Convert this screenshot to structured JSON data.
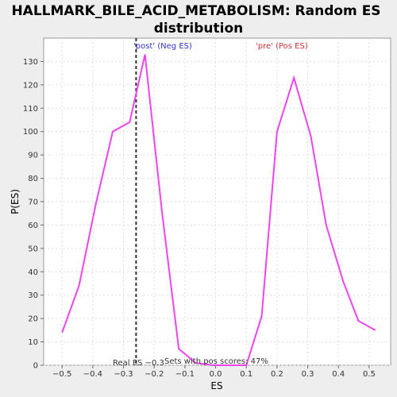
{
  "chart_data": {
    "type": "line",
    "title": "HALLMARK_BILE_ACID_METABOLISM: Random ES distribution",
    "title_lines": [
      "HALLMARK_BILE_ACID_METABOLISM: Random ES",
      "distribution"
    ],
    "xlabel": "ES",
    "ylabel": "P(ES)",
    "xlim": [
      -0.56,
      0.57
    ],
    "ylim": [
      0,
      140
    ],
    "x_ticks": [
      -0.5,
      -0.4,
      -0.3,
      -0.2,
      -0.1,
      0.0,
      0.1,
      0.2,
      0.3,
      0.4,
      0.5
    ],
    "x_tick_labels": [
      "−0.5",
      "−0.4",
      "−0.3",
      "−0.2",
      "−0.1",
      "0.0",
      "0.1",
      "0.2",
      "0.3",
      "0.4",
      "0.5"
    ],
    "y_ticks": [
      0,
      10,
      20,
      30,
      40,
      50,
      60,
      70,
      80,
      90,
      100,
      110,
      120,
      130
    ],
    "grid": true,
    "series": [
      {
        "color": "#ee44ee",
        "x": [
          -0.5,
          -0.445,
          -0.39,
          -0.335,
          -0.28,
          -0.23,
          -0.175,
          -0.12,
          -0.065,
          -0.01,
          0.045,
          0.1,
          0.15,
          0.2,
          0.255,
          0.31,
          0.36,
          0.415,
          0.465,
          0.52
        ],
        "y": [
          14,
          34,
          69,
          100,
          104,
          133,
          66,
          7,
          1,
          0,
          0,
          0,
          21,
          100,
          123,
          98,
          60,
          36,
          19,
          15
        ]
      }
    ],
    "real_es": -0.259,
    "annotations": {
      "neg": "'post' (Neg ES)",
      "pos": "'pre' (Pos ES)",
      "real_es": "Real ES −0.3",
      "sets_pos": "Sets with pos scores: 47%"
    },
    "colors": {
      "background": "#eeeeee",
      "plot_bg": "#ffffff",
      "line": "#ee44ee",
      "neg_text": "#3333cc",
      "pos_text": "#cc3333",
      "real_es_line": "#333333"
    }
  }
}
